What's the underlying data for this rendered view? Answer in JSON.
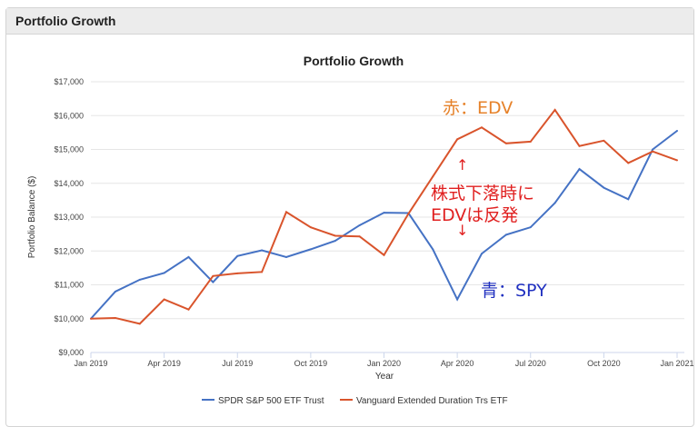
{
  "header": {
    "title": "Portfolio Growth"
  },
  "chart_data": {
    "type": "line",
    "title": "Portfolio Growth",
    "xlabel": "Year",
    "ylabel": "Portfolio Balance ($)",
    "ylim": [
      9000,
      17000
    ],
    "yticks": [
      "$9,000",
      "$10,000",
      "$11,000",
      "$12,000",
      "$13,000",
      "$14,000",
      "$15,000",
      "$16,000",
      "$17,000"
    ],
    "xtick_labels": [
      "Jan 2019",
      "Apr 2019",
      "Jul 2019",
      "Oct 2019",
      "Jan 2020",
      "Apr 2020",
      "Jul 2020",
      "Oct 2020",
      "Jan 2021"
    ],
    "x": [
      "2019-01",
      "2019-02",
      "2019-03",
      "2019-04",
      "2019-05",
      "2019-06",
      "2019-07",
      "2019-08",
      "2019-09",
      "2019-10",
      "2019-11",
      "2019-12",
      "2020-01",
      "2020-02",
      "2020-03",
      "2020-04",
      "2020-05",
      "2020-06",
      "2020-07",
      "2020-08",
      "2020-09",
      "2020-10",
      "2020-11",
      "2020-12",
      "2021-01"
    ],
    "grid": true,
    "legend": "bottom",
    "series": [
      {
        "name": "SPDR S&P 500 ETF Trust",
        "color": "#4572c4",
        "values": [
          10000,
          10800,
          11150,
          11350,
          11820,
          11080,
          11850,
          12020,
          11820,
          12050,
          12300,
          12760,
          13130,
          13120,
          12050,
          10570,
          11920,
          12480,
          12700,
          13420,
          14420,
          13870,
          13530,
          15000,
          15550
        ]
      },
      {
        "name": "Vanguard Extended Duration Trs ETF",
        "color": "#d9542c",
        "values": [
          10000,
          10020,
          9850,
          10570,
          10270,
          11260,
          11340,
          11380,
          13150,
          12700,
          12450,
          12430,
          11880,
          13100,
          14200,
          15300,
          15650,
          15180,
          15230,
          16170,
          15100,
          15260,
          14600,
          14940,
          14680
        ]
      }
    ]
  },
  "annotations": {
    "edv_label": "赤：EDV",
    "spy_label": "青：SPY",
    "up_arrow": "↑",
    "note_line1": "株式下落時に",
    "note_line2": "EDVは反発",
    "down_arrow": "↓"
  }
}
